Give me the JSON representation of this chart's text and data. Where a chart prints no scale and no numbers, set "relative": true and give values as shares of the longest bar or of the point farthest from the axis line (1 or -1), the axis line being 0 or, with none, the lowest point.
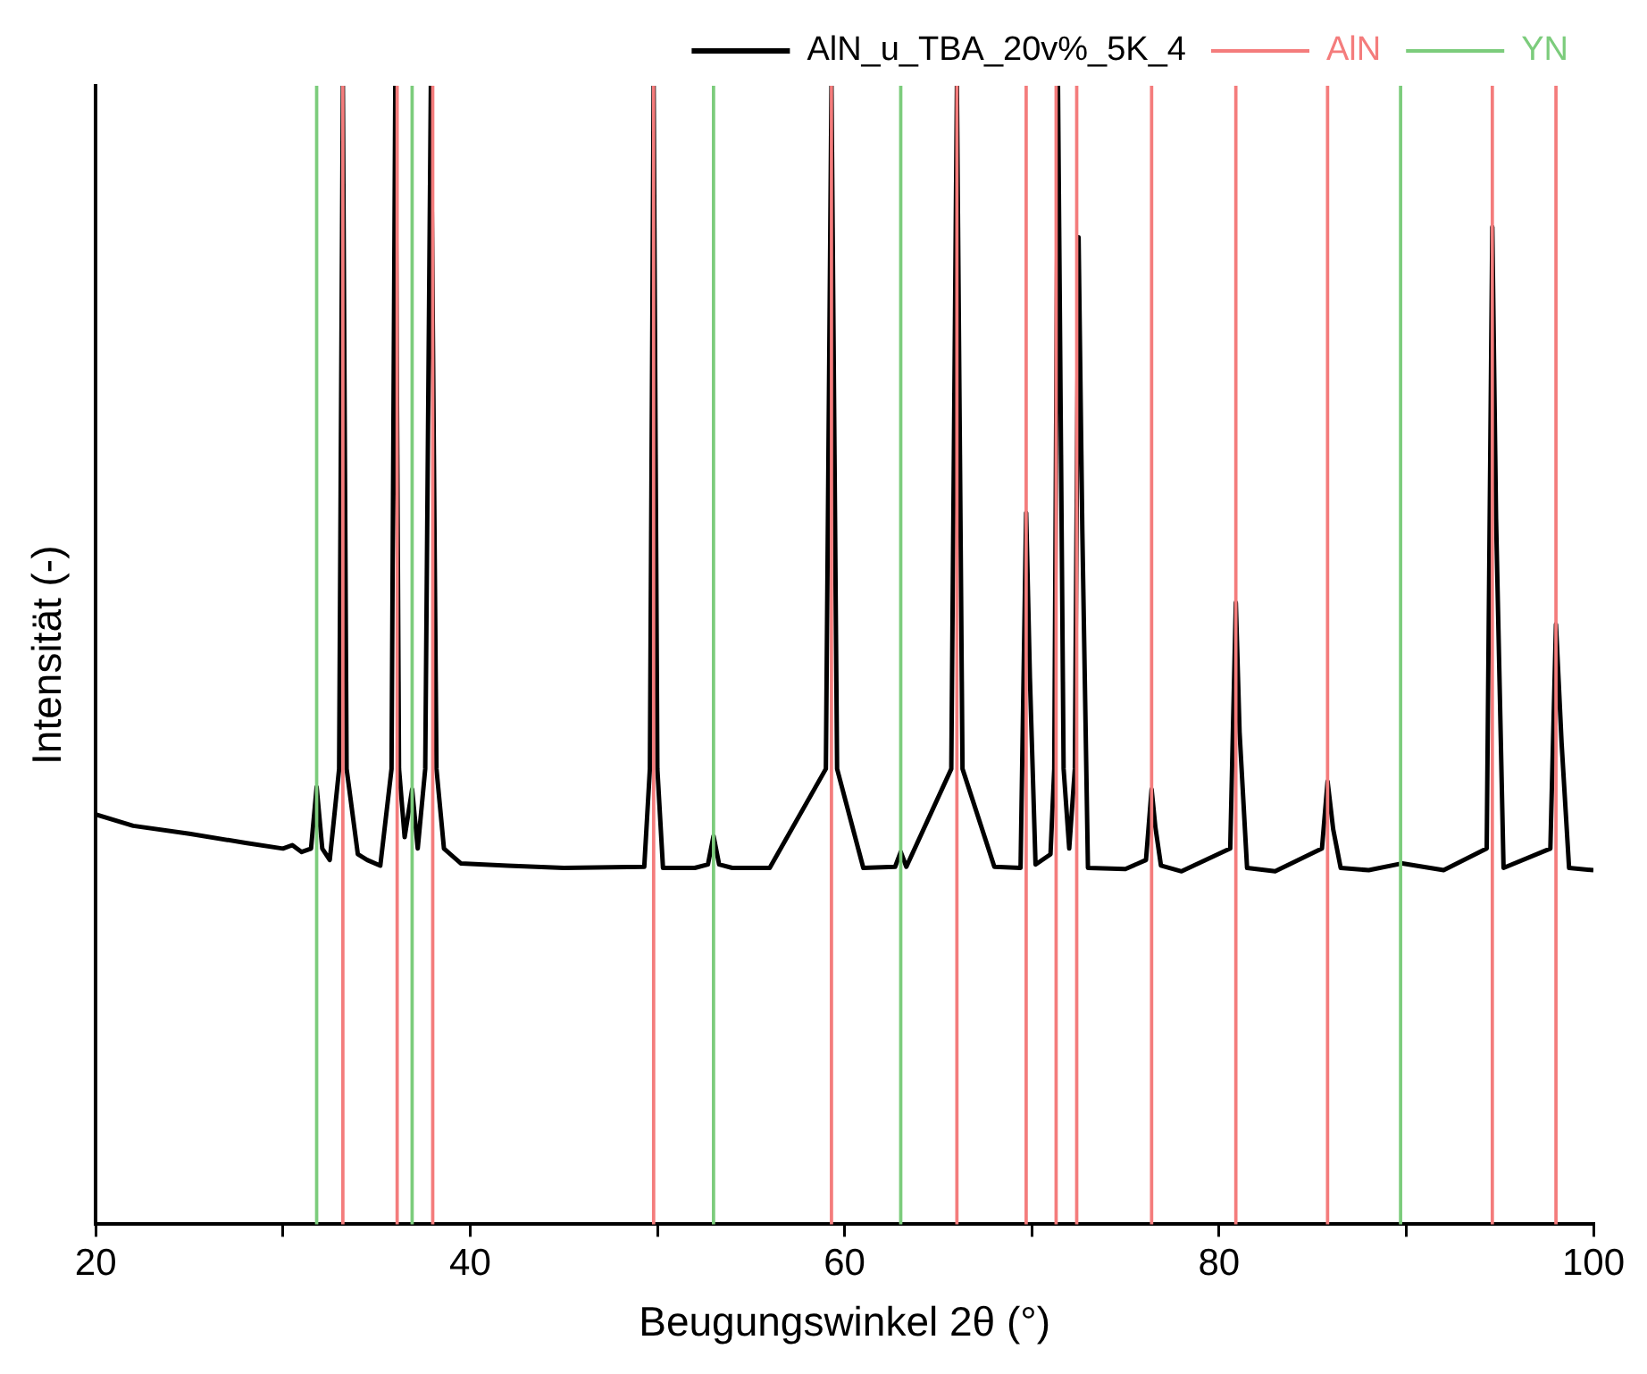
{
  "chart_data": {
    "type": "line",
    "relative": true,
    "xlabel": "Beugungswinkel 2θ (°)",
    "ylabel": "Intensität (-)",
    "xlim": [
      20,
      100
    ],
    "xticks": [
      20,
      {
        "value": 30,
        "label": null
      },
      40,
      {
        "value": 50,
        "label": null
      },
      60,
      {
        "value": 70,
        "label": null
      },
      80,
      {
        "value": 90,
        "label": null
      },
      100
    ],
    "legend": "top right",
    "grid": false,
    "marker": "none",
    "series": [
      {
        "name": "AlN_u_TBA_20v%_5K_4",
        "color": "#000000",
        "line_style": "solid",
        "x": [
          20,
          22,
          25,
          28,
          30,
          30.5,
          31,
          31.5,
          31.8,
          32.1,
          32.5,
          33.0,
          33.2,
          33.4,
          34,
          34.5,
          35.2,
          35.8,
          36.0,
          36.2,
          36.5,
          36.9,
          37.2,
          37.6,
          37.9,
          38.2,
          38.6,
          39.5,
          42,
          45,
          49.3,
          49.6,
          49.8,
          50.0,
          50.3,
          52,
          52.7,
          53.0,
          53.3,
          54,
          56,
          59.0,
          59.3,
          59.6,
          61,
          62.7,
          63.0,
          63.3,
          65.7,
          66.0,
          66.3,
          68,
          69.4,
          69.7,
          69.9,
          70.2,
          71.0,
          71.2,
          71.4,
          71.7,
          72.0,
          72.3,
          72.5,
          72.7,
          73.0,
          75,
          76.1,
          76.4,
          76.6,
          76.9,
          78,
          80.6,
          80.9,
          81.1,
          81.5,
          83,
          85.5,
          85.8,
          86.1,
          86.5,
          88,
          89.8,
          92,
          94.3,
          94.6,
          94.8,
          95.2,
          97.7,
          98.0,
          98.3,
          98.7,
          100
        ],
        "values": [
          0.36,
          0.35,
          0.343,
          0.335,
          0.33,
          0.333,
          0.327,
          0.33,
          0.384,
          0.33,
          0.32,
          0.4,
          1,
          0.4,
          0.325,
          0.32,
          0.315,
          0.4,
          1,
          0.4,
          0.34,
          0.382,
          0.33,
          0.4,
          1,
          0.4,
          0.33,
          0.317,
          0.315,
          0.313,
          0.314,
          0.4,
          1,
          0.4,
          0.313,
          0.313,
          0.316,
          0.341,
          0.316,
          0.313,
          0.313,
          0.4,
          1,
          0.4,
          0.313,
          0.314,
          0.327,
          0.314,
          0.4,
          1,
          0.4,
          0.314,
          0.313,
          0.625,
          0.48,
          0.316,
          0.325,
          0.4,
          1,
          0.4,
          0.33,
          0.4,
          0.867,
          0.609,
          0.313,
          0.312,
          0.32,
          0.382,
          0.349,
          0.315,
          0.31,
          0.33,
          0.546,
          0.432,
          0.313,
          0.31,
          0.33,
          0.389,
          0.347,
          0.313,
          0.311,
          0.317,
          0.311,
          0.33,
          0.876,
          0.62,
          0.313,
          0.33,
          0.527,
          0.423,
          0.313,
          0.311
        ]
      },
      {
        "name": "AlN",
        "color": "#f47c7c",
        "type": "bar",
        "x": [
          33.2,
          36.1,
          38.0,
          49.8,
          59.3,
          66.0,
          69.7,
          71.3,
          72.4,
          76.4,
          80.9,
          85.8,
          94.6,
          98.0
        ],
        "values": [
          1,
          1,
          1,
          1,
          1,
          1,
          1,
          1,
          1,
          1,
          1,
          1,
          1,
          1
        ]
      },
      {
        "name": "YN",
        "color": "#7ccc7c",
        "type": "bar",
        "x": [
          31.8,
          36.9,
          53.0,
          63.0,
          89.7
        ],
        "values": [
          1,
          1,
          1,
          1,
          1
        ]
      }
    ]
  }
}
